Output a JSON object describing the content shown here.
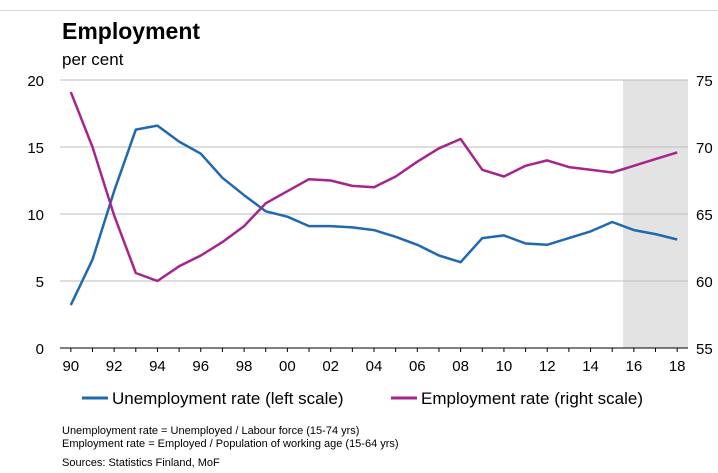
{
  "title": "Employment",
  "subtitle": "per cent",
  "footnotes": [
    "Unemployment rate = Unemployed / Labour force (15-74 yrs)",
    "Employment rate = Employed / Population of working age (15-64 yrs)",
    "Sources: Statistics Finland, MoF"
  ],
  "chart_data": {
    "type": "line",
    "title": "Employment",
    "subtitle": "per cent",
    "x_tick_labels": [
      "90",
      "92",
      "94",
      "96",
      "98",
      "00",
      "02",
      "04",
      "06",
      "08",
      "10",
      "12",
      "14",
      "16",
      "18"
    ],
    "x": [
      1990,
      1991,
      1992,
      1993,
      1994,
      1995,
      1996,
      1997,
      1998,
      1999,
      2000,
      2001,
      2002,
      2003,
      2004,
      2005,
      2006,
      2007,
      2008,
      2009,
      2010,
      2011,
      2012,
      2013,
      2014,
      2015,
      2016,
      2017,
      2018
    ],
    "left_axis": {
      "ylim": [
        0,
        20
      ],
      "ticks": [
        "0",
        "5",
        "10",
        "15",
        "20"
      ]
    },
    "right_axis": {
      "ylim": [
        55,
        75
      ],
      "ticks": [
        "55",
        "60",
        "65",
        "70",
        "75"
      ]
    },
    "forecast_shading": {
      "from": 2015.5,
      "to": 2018.5,
      "color": "#e3e3e3"
    },
    "grid": "horizontal",
    "legend_position": "bottom",
    "series": [
      {
        "name": "Unemployment rate (left scale)",
        "axis": "left",
        "color": "#2068b0",
        "values": [
          3.2,
          6.6,
          11.7,
          16.3,
          16.6,
          15.4,
          14.5,
          12.7,
          11.4,
          10.2,
          9.8,
          9.1,
          9.1,
          9.0,
          8.8,
          8.3,
          7.7,
          6.9,
          6.4,
          8.2,
          8.4,
          7.8,
          7.7,
          8.2,
          8.7,
          9.4,
          8.8,
          8.5,
          8.1
        ]
      },
      {
        "name": "Employment rate (right scale)",
        "axis": "right",
        "color": "#a5258c",
        "values": [
          74.1,
          70.0,
          64.9,
          60.6,
          60.0,
          61.1,
          61.9,
          62.9,
          64.1,
          65.8,
          66.7,
          67.6,
          67.5,
          67.1,
          67.0,
          67.8,
          68.9,
          69.9,
          70.6,
          68.3,
          67.8,
          68.6,
          69.0,
          68.5,
          68.3,
          68.1,
          68.6,
          69.1,
          69.6
        ]
      }
    ]
  }
}
